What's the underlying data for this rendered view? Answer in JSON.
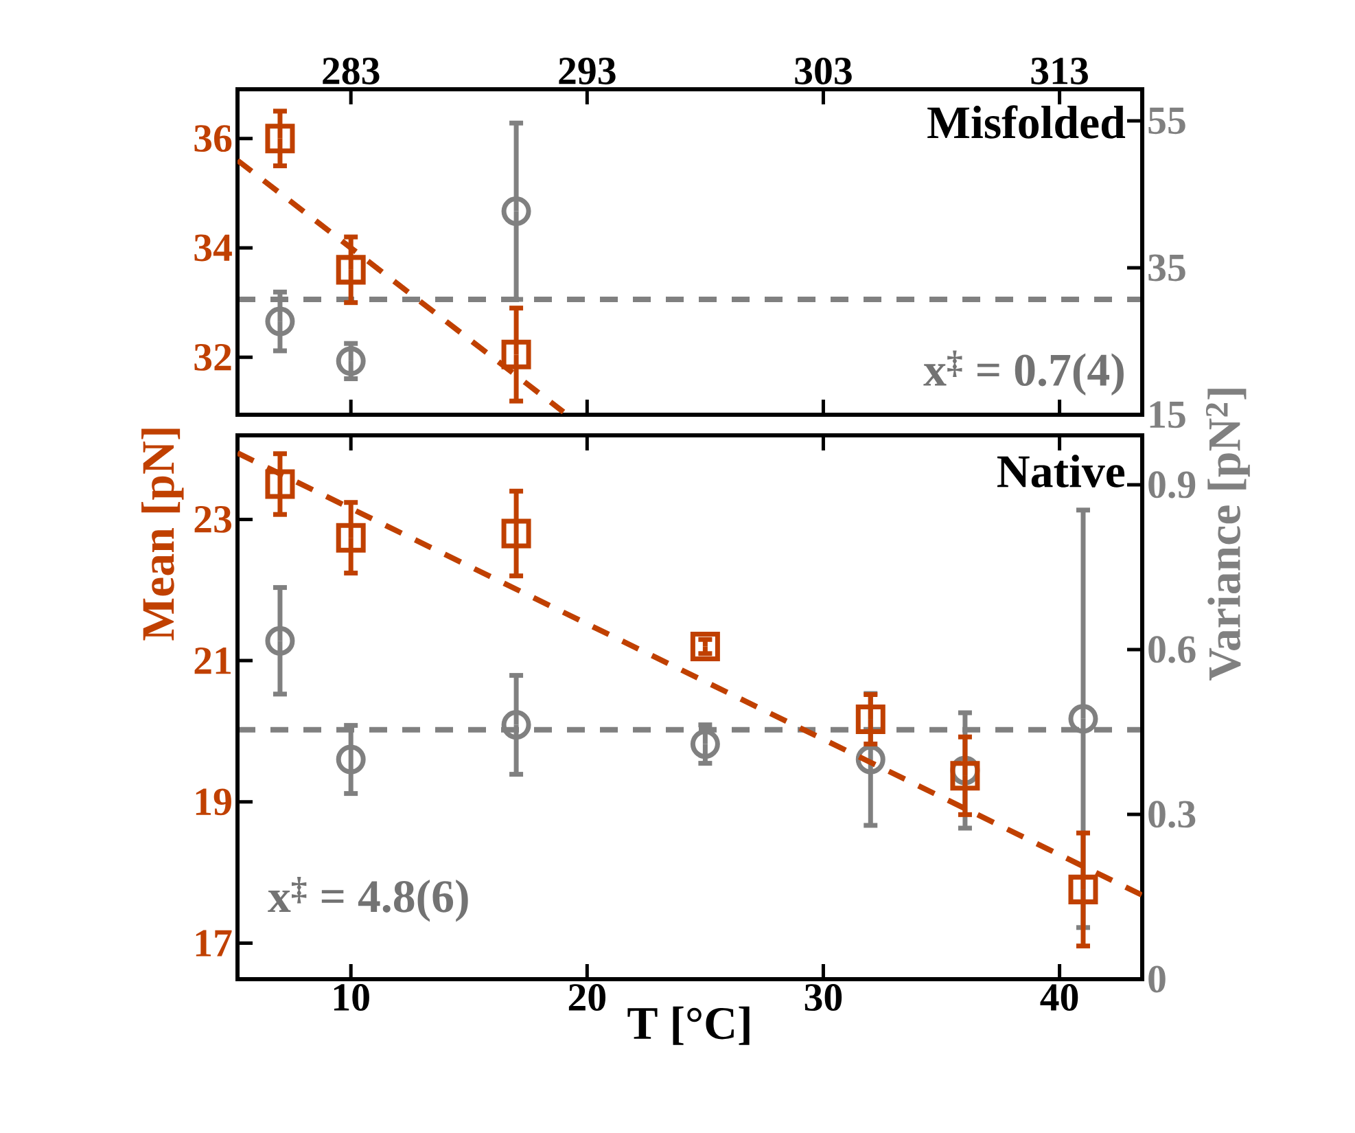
{
  "chart_data": [
    {
      "type": "scatter",
      "annotations": [
        "Misfolded",
        "x$^{‡}$ = 0.7(4)"
      ],
      "xlim": [
        5.2,
        43.5
      ],
      "xticks": [
        10,
        20,
        30,
        40
      ],
      "x2lim": [
        278.2,
        316.5
      ],
      "x2ticks": [
        283,
        293,
        303,
        313
      ],
      "ylim": [
        30.95,
        36.9
      ],
      "yticks": [
        32,
        34,
        36
      ],
      "y2lim": [
        15,
        59.3
      ],
      "y2ticks": [
        15,
        35,
        55
      ],
      "tick_labels": "y",
      "ref_lines": [
        {
          "axis": "y2",
          "value": 30.7,
          "color": "#808080",
          "line_style": "dashed"
        }
      ],
      "series": [
        {
          "color": "#c04000",
          "marker": "square",
          "x": [
            7,
            10,
            17
          ],
          "values": [
            36.0,
            33.6,
            32.05
          ],
          "errors": [
            0.5,
            0.6,
            0.85
          ]
        },
        {
          "color": "#808080",
          "marker": "circle",
          "axis": "y2",
          "x": [
            7,
            10,
            17
          ],
          "values": [
            27.7,
            22.3,
            42.7
          ],
          "errors": [
            4,
            2.4,
            12
          ]
        },
        {
          "type": "line",
          "color": "#c04000",
          "marker": "none",
          "line_style": "dashed",
          "x": [
            5.2,
            19.0
          ],
          "values": [
            35.6,
            31.0
          ]
        }
      ]
    },
    {
      "type": "scatter",
      "xlabel": "T [°C]",
      "ylabel": "Mean [pN]",
      "y2label": "Variance [pN$^{2}$]",
      "annotations": [
        "Native",
        "x$^{‡}$ = 4.8(6)"
      ],
      "xlim": [
        5.2,
        43.5
      ],
      "xticks": [
        10,
        20,
        30,
        40
      ],
      "ylim": [
        16.49,
        24.19
      ],
      "yticks": [
        17,
        19,
        21,
        23
      ],
      "y2lim": [
        0,
        0.99
      ],
      "y2ticks": [
        0,
        0.3,
        0.6,
        0.9
      ],
      "ref_lines": [
        {
          "axis": "y2",
          "value": 0.454,
          "color": "#808080",
          "line_style": "dashed"
        }
      ],
      "series": [
        {
          "color": "#c04000",
          "marker": "square",
          "x": [
            7,
            10,
            17,
            25,
            32,
            36,
            41
          ],
          "values": [
            23.5,
            22.74,
            22.8,
            21.2,
            20.17,
            19.37,
            17.76
          ],
          "errors": [
            0.43,
            0.5,
            0.6,
            0.1,
            0.35,
            0.55,
            0.8
          ]
        },
        {
          "color": "#808080",
          "marker": "circle",
          "axis": "y2",
          "x": [
            7,
            10,
            17,
            25,
            32,
            36,
            41
          ],
          "values": [
            0.616,
            0.4,
            0.463,
            0.428,
            0.4,
            0.38,
            0.474
          ],
          "errors": [
            0.097,
            0.062,
            0.09,
            0.035,
            0.12,
            0.105,
            0.38
          ]
        },
        {
          "type": "line",
          "color": "#c04000",
          "marker": "none",
          "line_style": "dashed",
          "x": [
            5.2,
            43.5
          ],
          "values": [
            23.94,
            17.68
          ]
        }
      ]
    }
  ]
}
